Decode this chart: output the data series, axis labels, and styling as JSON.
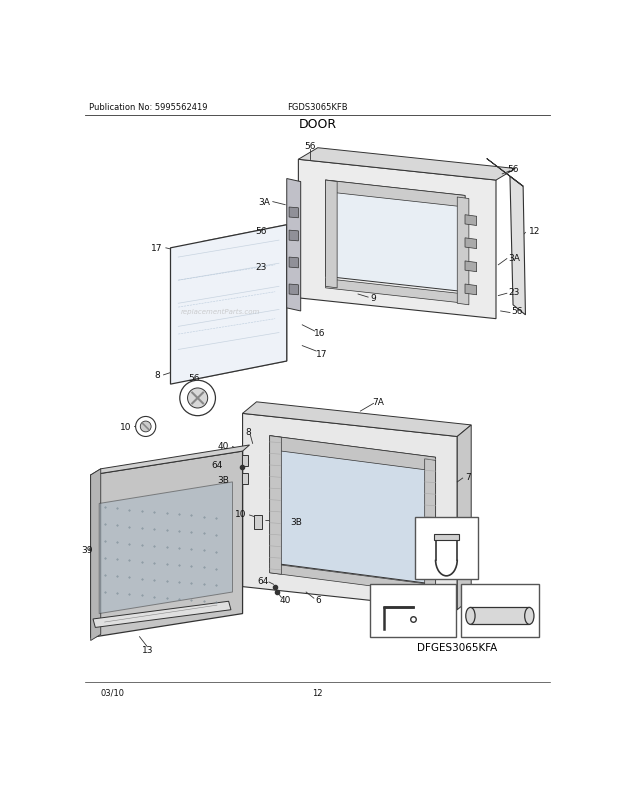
{
  "title": "DOOR",
  "pub_no": "Publication No: 5995562419",
  "model": "FGDS3065KFB",
  "date": "03/10",
  "page": "12",
  "alt_model": "DFGES3065KFA",
  "bg_color": "#ffffff",
  "line_color": "#333333",
  "label_fontsize": 6.5,
  "title_fontsize": 9
}
